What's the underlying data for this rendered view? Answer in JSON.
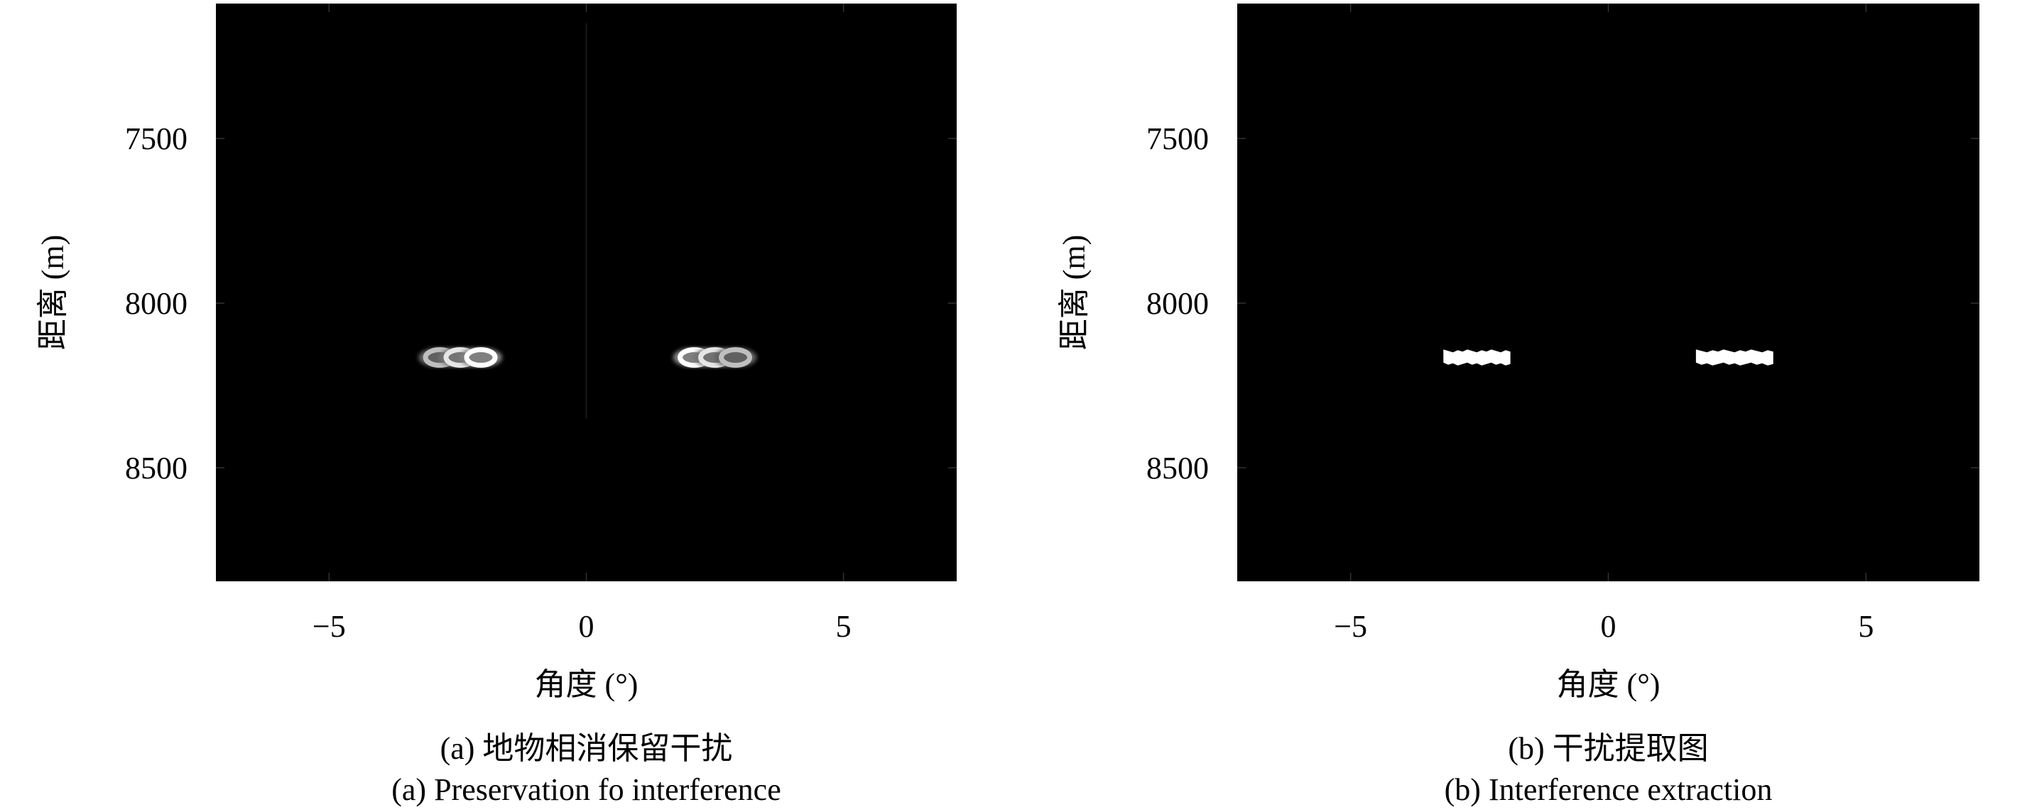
{
  "chart_data": [
    {
      "type": "heatmap",
      "xlabel": "角度 (°)",
      "ylabel": "距离 (m)",
      "xlim": [
        -7.2,
        7.2
      ],
      "ylim": [
        7090,
        8845
      ],
      "y_reversed": true,
      "xticks": [
        -5,
        0,
        5
      ],
      "xtick_labels": [
        "−5",
        "0",
        "5"
      ],
      "yticks": [
        7500,
        8000,
        8500
      ],
      "ytick_labels": [
        "7500",
        "8000",
        "8500"
      ],
      "colormap": "gray",
      "background": "#000000",
      "caption_cn": "(a) 地物相消保留干扰",
      "caption_en": "(a) Preservation fo interference",
      "blobs": [
        {
          "x": -2.85,
          "y": 8165,
          "intensity": 0.75
        },
        {
          "x": -2.45,
          "y": 8165,
          "intensity": 0.9
        },
        {
          "x": -2.05,
          "y": 8165,
          "intensity": 1.0
        },
        {
          "x": 2.1,
          "y": 8165,
          "intensity": 1.0
        },
        {
          "x": 2.5,
          "y": 8165,
          "intensity": 0.9
        },
        {
          "x": 2.9,
          "y": 8165,
          "intensity": 0.75
        }
      ]
    },
    {
      "type": "heatmap",
      "xlabel": "角度 (°)",
      "ylabel": "距离 (m)",
      "xlim": [
        -7.2,
        7.2
      ],
      "ylim": [
        7090,
        8845
      ],
      "y_reversed": true,
      "xticks": [
        -5,
        0,
        5
      ],
      "xtick_labels": [
        "−5",
        "0",
        "5"
      ],
      "yticks": [
        7500,
        8000,
        8500
      ],
      "ytick_labels": [
        "7500",
        "8000",
        "8500"
      ],
      "colormap": "binary",
      "background": "#000000",
      "caption_cn": "(b) 干扰提取图",
      "caption_en": "(b) Interference extraction",
      "regions": [
        {
          "x": [
            -3.2,
            -1.9
          ],
          "y": [
            8145,
            8185
          ]
        },
        {
          "x": [
            1.7,
            3.2
          ],
          "y": [
            8145,
            8185
          ]
        }
      ]
    }
  ]
}
